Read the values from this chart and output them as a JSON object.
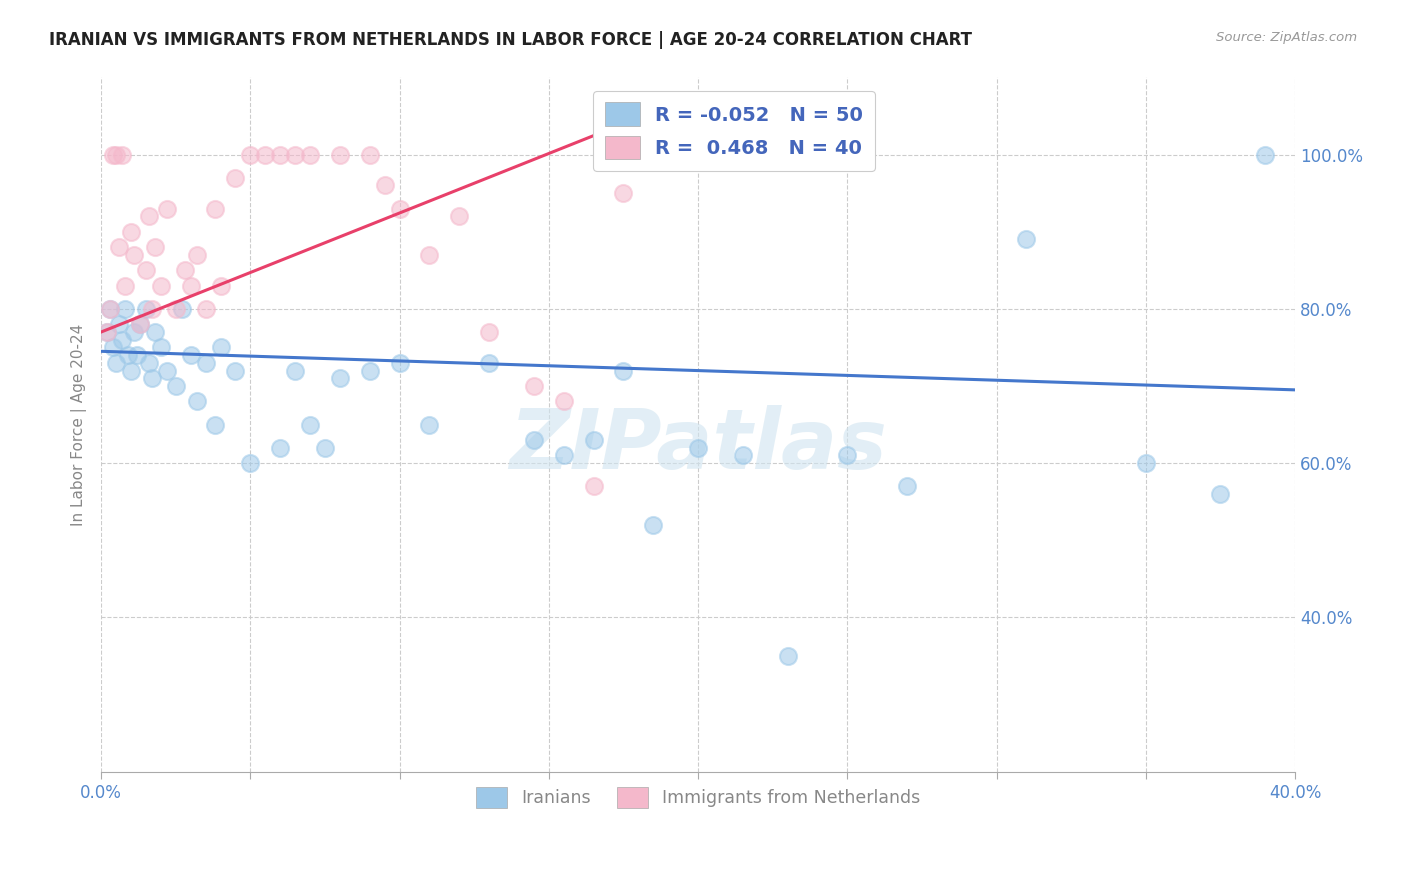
{
  "title": "IRANIAN VS IMMIGRANTS FROM NETHERLANDS IN LABOR FORCE | AGE 20-24 CORRELATION CHART",
  "source": "Source: ZipAtlas.com",
  "ylabel": "In Labor Force | Age 20-24",
  "x_min": 0.0,
  "x_max": 0.4,
  "y_min": 0.2,
  "y_max": 1.1,
  "x_ticks": [
    0.0,
    0.05,
    0.1,
    0.15,
    0.2,
    0.25,
    0.3,
    0.35,
    0.4
  ],
  "y_ticks": [
    0.4,
    0.6,
    0.8,
    1.0
  ],
  "blue_R": "-0.052",
  "blue_N": "50",
  "pink_R": "0.468",
  "pink_N": "40",
  "blue_color": "#9dc8e8",
  "pink_color": "#f4b8cb",
  "blue_line_color": "#4477cc",
  "pink_line_color": "#e8406a",
  "watermark": "ZIPatlas",
  "blue_scatter_x": [
    0.002,
    0.003,
    0.004,
    0.005,
    0.006,
    0.007,
    0.008,
    0.009,
    0.01,
    0.011,
    0.012,
    0.013,
    0.015,
    0.016,
    0.017,
    0.018,
    0.02,
    0.022,
    0.025,
    0.027,
    0.03,
    0.032,
    0.035,
    0.038,
    0.04,
    0.045,
    0.05,
    0.06,
    0.065,
    0.07,
    0.075,
    0.08,
    0.09,
    0.1,
    0.11,
    0.13,
    0.145,
    0.155,
    0.165,
    0.175,
    0.185,
    0.2,
    0.215,
    0.23,
    0.25,
    0.27,
    0.31,
    0.35,
    0.375,
    0.39
  ],
  "blue_scatter_y": [
    0.77,
    0.8,
    0.75,
    0.73,
    0.78,
    0.76,
    0.8,
    0.74,
    0.72,
    0.77,
    0.74,
    0.78,
    0.8,
    0.73,
    0.71,
    0.77,
    0.75,
    0.72,
    0.7,
    0.8,
    0.74,
    0.68,
    0.73,
    0.65,
    0.75,
    0.72,
    0.6,
    0.62,
    0.72,
    0.65,
    0.62,
    0.71,
    0.72,
    0.73,
    0.65,
    0.73,
    0.63,
    0.61,
    0.63,
    0.72,
    0.52,
    0.62,
    0.61,
    0.35,
    0.61,
    0.57,
    0.89,
    0.6,
    0.56,
    1.0
  ],
  "pink_scatter_x": [
    0.002,
    0.003,
    0.004,
    0.005,
    0.006,
    0.007,
    0.008,
    0.01,
    0.011,
    0.013,
    0.015,
    0.016,
    0.017,
    0.018,
    0.02,
    0.022,
    0.025,
    0.028,
    0.03,
    0.032,
    0.035,
    0.038,
    0.04,
    0.045,
    0.05,
    0.055,
    0.06,
    0.065,
    0.07,
    0.08,
    0.09,
    0.095,
    0.1,
    0.11,
    0.12,
    0.13,
    0.145,
    0.155,
    0.165,
    0.175
  ],
  "pink_scatter_y": [
    0.77,
    0.8,
    1.0,
    1.0,
    0.88,
    1.0,
    0.83,
    0.9,
    0.87,
    0.78,
    0.85,
    0.92,
    0.8,
    0.88,
    0.83,
    0.93,
    0.8,
    0.85,
    0.83,
    0.87,
    0.8,
    0.93,
    0.83,
    0.97,
    1.0,
    1.0,
    1.0,
    1.0,
    1.0,
    1.0,
    1.0,
    0.96,
    0.93,
    0.87,
    0.92,
    0.77,
    0.7,
    0.68,
    0.57,
    0.95
  ],
  "blue_trendline_x": [
    0.0,
    0.4
  ],
  "blue_trendline_y": [
    0.745,
    0.695
  ],
  "pink_trendline_x": [
    0.0,
    0.175
  ],
  "pink_trendline_y": [
    0.77,
    1.04
  ],
  "legend_label_blue": "Iranians",
  "legend_label_pink": "Immigrants from Netherlands",
  "background_color": "#ffffff"
}
